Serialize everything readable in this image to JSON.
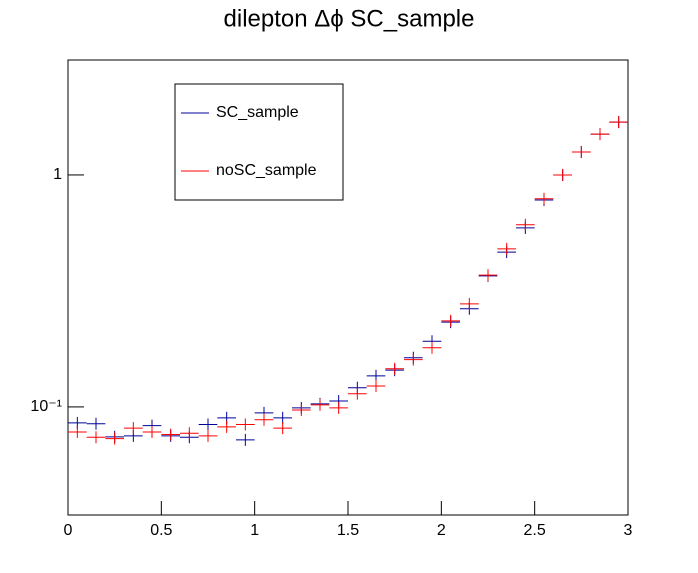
{
  "chart_data": {
    "type": "histogram",
    "title": "dilepton Δϕ SC_sample",
    "bins": [
      0,
      0.1,
      0.2,
      0.3,
      0.4,
      0.5,
      0.6,
      0.7,
      0.8,
      0.9,
      1.0,
      1.1,
      1.2,
      1.3,
      1.4,
      1.5,
      1.6,
      1.7,
      1.8,
      1.9,
      2.0,
      2.1,
      2.2,
      2.3,
      2.4,
      2.5,
      2.6,
      2.7,
      2.8,
      2.9,
      3.0
    ],
    "series": [
      {
        "name": "SC_sample",
        "color": "#000099",
        "values": [
          0.0853,
          0.0846,
          0.0743,
          0.075,
          0.083,
          0.075,
          0.074,
          0.084,
          0.0897,
          0.0721,
          0.0942,
          0.0897,
          0.099,
          0.103,
          0.106,
          0.121,
          0.136,
          0.144,
          0.163,
          0.192,
          0.232,
          0.265,
          0.367,
          0.465,
          0.591,
          0.78,
          1.0,
          1.256,
          1.5,
          1.69
        ]
      },
      {
        "name": "noSC_sample",
        "color": "#ff0000",
        "values": [
          0.078,
          0.074,
          0.073,
          0.081,
          0.078,
          0.076,
          0.077,
          0.075,
          0.082,
          0.084,
          0.088,
          0.081,
          0.097,
          0.102,
          0.099,
          0.114,
          0.123,
          0.146,
          0.16,
          0.18,
          0.235,
          0.278,
          0.37,
          0.48,
          0.61,
          0.79,
          1.0,
          1.256,
          1.5,
          1.69
        ]
      }
    ],
    "xlim": [
      0,
      3
    ],
    "xticks": [
      0,
      0.5,
      1,
      1.5,
      2,
      2.5,
      3
    ],
    "ylim": [
      0.0342,
      3.13
    ],
    "log_y": true,
    "yticks": [
      {
        "value": 0.1,
        "label": "10⁻¹"
      },
      1
    ],
    "legend": "top-left"
  }
}
